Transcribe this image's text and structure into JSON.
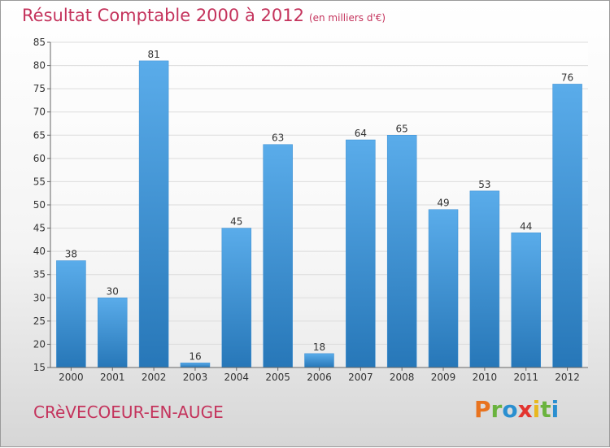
{
  "chart_data": {
    "type": "bar",
    "title": "Résultat Comptable 2000 à 2012",
    "subtitle": "(en milliers d'€)",
    "categories": [
      "2000",
      "2001",
      "2002",
      "2003",
      "2004",
      "2005",
      "2006",
      "2007",
      "2008",
      "2009",
      "2010",
      "2011",
      "2012"
    ],
    "values": [
      38,
      30,
      81,
      16,
      45,
      63,
      18,
      64,
      65,
      49,
      53,
      44,
      76
    ],
    "xlabel": "",
    "ylabel": "",
    "ylim": [
      15,
      85
    ],
    "yticks": [
      15,
      20,
      25,
      30,
      35,
      40,
      45,
      50,
      55,
      60,
      65,
      70,
      75,
      80,
      85
    ],
    "grid": true
  },
  "footer": {
    "commune": "CRèVECOEUR-EN-AUGE",
    "brand": "Proxiti",
    "brand_colors": [
      "#e8731f",
      "#6ab33e",
      "#2a8fd0",
      "#e3342f",
      "#e8b81f",
      "#6ab33e",
      "#2a8fd0"
    ]
  },
  "colors": {
    "title": "#c4335c",
    "bar_top": "#5aacea",
    "bar_bottom": "#2777b8",
    "grid": "#dcdcdc",
    "axis": "#666666"
  }
}
